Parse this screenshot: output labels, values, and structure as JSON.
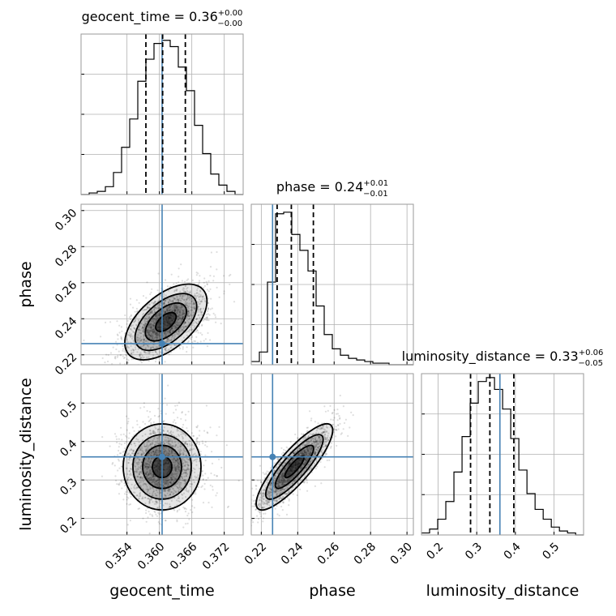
{
  "chart_data": {
    "type": "corner",
    "parameters": [
      "geocent_time",
      "phase",
      "luminosity_distance"
    ],
    "truths": {
      "geocent_time": 0.3605,
      "phase": 0.2262,
      "luminosity_distance": 0.36
    },
    "axes": {
      "geocent_time": {
        "label": "geocent_time",
        "range": [
          0.3455,
          0.3755
        ],
        "ticks": [
          0.354,
          0.36,
          0.366,
          0.372
        ],
        "tick_labels": [
          "0.354",
          "0.360",
          "0.366",
          "0.372"
        ]
      },
      "phase": {
        "label": "phase",
        "range": [
          0.2145,
          0.3035
        ],
        "ticks": [
          0.22,
          0.24,
          0.26,
          0.28,
          0.3
        ],
        "tick_labels": [
          "0.22",
          "0.24",
          "0.26",
          "0.28",
          "0.30"
        ]
      },
      "luminosity_distance": {
        "label": "luminosity_distance",
        "range": [
          0.157,
          0.5765
        ],
        "ticks": [
          0.2,
          0.3,
          0.4,
          0.5
        ],
        "tick_labels": [
          "0.2",
          "0.3",
          "0.4",
          "0.5"
        ]
      }
    },
    "histograms": [
      {
        "param": "geocent_time",
        "title_main": "geocent_time = 0.36",
        "title_sup": "+0.00",
        "title_sub": "−0.00",
        "bin_edges": [
          0.3455,
          0.347,
          0.3485,
          0.35,
          0.3515,
          0.353,
          0.3545,
          0.356,
          0.3575,
          0.359,
          0.3605,
          0.362,
          0.3635,
          0.365,
          0.3665,
          0.368,
          0.3695,
          0.371,
          0.3725,
          0.374,
          0.3755
        ],
        "counts": [
          0,
          1,
          2,
          5,
          14,
          30,
          48,
          72,
          86,
          96,
          98,
          94,
          81,
          66,
          44,
          26,
          13,
          6,
          2,
          0
        ],
        "ymax": 102,
        "quantiles": [
          0.3575,
          0.3606,
          0.3648
        ],
        "truth": 0.3605
      },
      {
        "param": "phase",
        "title_main": "phase = 0.24",
        "title_sup": "+0.01",
        "title_sub": "−0.01",
        "bin_edges": [
          0.2145,
          0.21895,
          0.2234,
          0.22785,
          0.2323,
          0.23675,
          0.2412,
          0.24565,
          0.2501,
          0.25455,
          0.259,
          0.26345,
          0.2679,
          0.27235,
          0.2768,
          0.28125,
          0.2857,
          0.29015,
          0.2946,
          0.29905,
          0.3035
        ],
        "counts": [
          2,
          8,
          52,
          95,
          96,
          82,
          72,
          59,
          37,
          19,
          10,
          6,
          4,
          3,
          2,
          1,
          1,
          0,
          0,
          0
        ],
        "ymax": 101,
        "quantiles": [
          0.2287,
          0.2365,
          0.2486
        ],
        "truth": 0.2262
      },
      {
        "param": "luminosity_distance",
        "title_main": "luminosity_distance = 0.33",
        "title_sup": "+0.06",
        "title_sub": "−0.05",
        "bin_edges": [
          0.157,
          0.178,
          0.199,
          0.22,
          0.241,
          0.262,
          0.283,
          0.304,
          0.325,
          0.346,
          0.367,
          0.388,
          0.409,
          0.43,
          0.451,
          0.472,
          0.493,
          0.514,
          0.535,
          0.556,
          0.577
        ],
        "counts": [
          1,
          3,
          8,
          17,
          32,
          50,
          67,
          78,
          80,
          74,
          64,
          49,
          33,
          21,
          13,
          8,
          4,
          2,
          1,
          0
        ],
        "ymax": 82,
        "quantiles": [
          0.284,
          0.334,
          0.396
        ],
        "truth": 0.36
      }
    ],
    "scatter_panels": [
      {
        "x": "geocent_time",
        "y": "phase",
        "center": [
          0.3612,
          0.2382
        ],
        "sd": [
          0.0038,
          0.0105
        ],
        "correlation": 0.55,
        "contour_levels_sigma": [
          0.5,
          1.0,
          1.5,
          2.0
        ]
      },
      {
        "x": "geocent_time",
        "y": "luminosity_distance",
        "center": [
          0.3605,
          0.334
        ],
        "sd": [
          0.0036,
          0.056
        ],
        "correlation": 0.0,
        "contour_levels_sigma": [
          0.5,
          1.0,
          1.5,
          2.0
        ]
      },
      {
        "x": "phase",
        "y": "luminosity_distance",
        "center": [
          0.2382,
          0.334
        ],
        "sd": [
          0.0105,
          0.056
        ],
        "correlation": 0.85,
        "contour_levels_sigma": [
          0.5,
          1.0,
          1.5,
          2.0
        ]
      }
    ]
  }
}
